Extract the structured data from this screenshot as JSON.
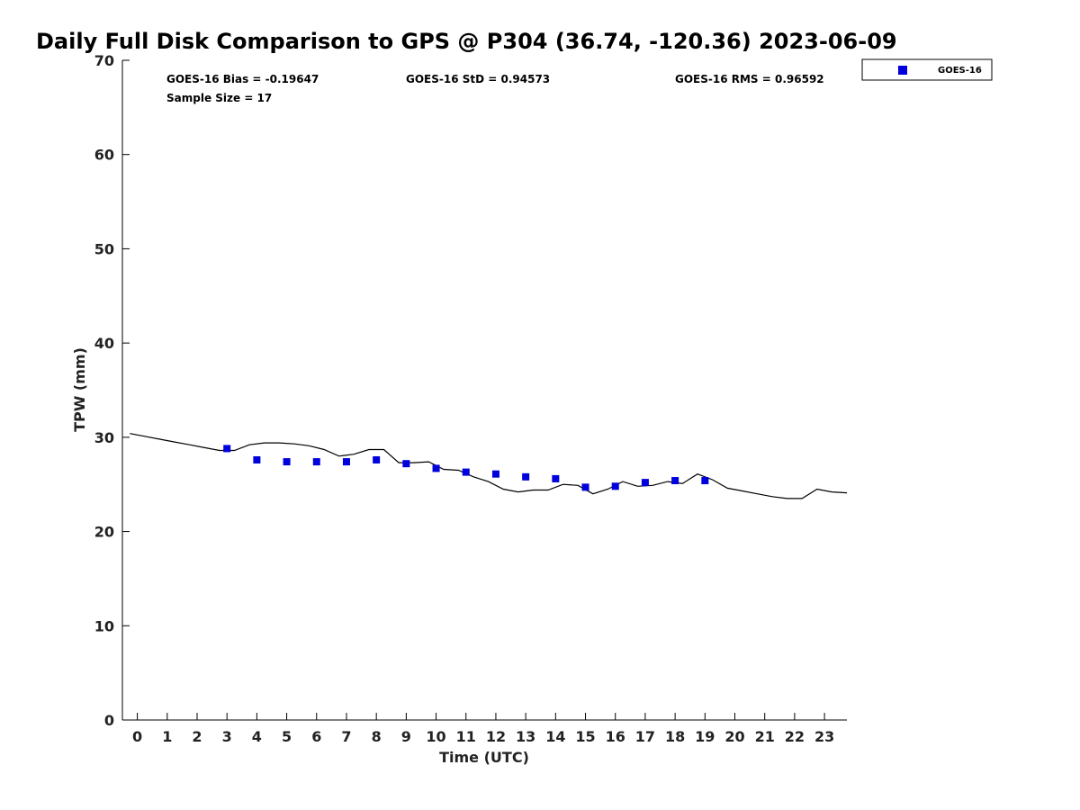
{
  "chart_data": {
    "type": "scatter",
    "title": "Daily Full Disk Comparison to GPS @ P304 (36.74, -120.36) 2023-06-09",
    "xlabel": "Time (UTC)",
    "ylabel": "TPW (mm)",
    "xlim": [
      -0.5,
      23.75
    ],
    "ylim": [
      0,
      70
    ],
    "xticks": [
      0,
      1,
      2,
      3,
      4,
      5,
      6,
      7,
      8,
      9,
      10,
      11,
      12,
      13,
      14,
      15,
      16,
      17,
      18,
      19,
      20,
      21,
      22,
      23
    ],
    "yticks": [
      0,
      10,
      20,
      30,
      40,
      50,
      60,
      70
    ],
    "grid": false,
    "legend_placement": "top-right-outside",
    "stats": {
      "bias": "GOES-16 Bias = -0.19647",
      "std": "GOES-16 StD = 0.94573",
      "rms": "GOES-16 RMS = 0.96592",
      "sample_size": "Sample Size = 17"
    },
    "series": [
      {
        "name": "GOES-16",
        "kind": "scatter",
        "marker": "square",
        "color": "#0000dd",
        "x": [
          3,
          4,
          5,
          6,
          7,
          8,
          9,
          10,
          11,
          12,
          13,
          14,
          15,
          16,
          17,
          18,
          19
        ],
        "y": [
          28.8,
          27.6,
          27.4,
          27.4,
          27.4,
          27.6,
          27.2,
          26.7,
          26.3,
          26.1,
          25.8,
          25.6,
          24.7,
          24.8,
          25.2,
          25.4,
          25.4
        ]
      },
      {
        "kind": "line",
        "color": "#000000",
        "x": [
          -0.25,
          0.25,
          0.75,
          1.25,
          1.75,
          2.25,
          2.75,
          3.25,
          3.75,
          4.25,
          4.75,
          5.25,
          5.75,
          6.25,
          6.75,
          7.25,
          7.75,
          8.25,
          8.75,
          9.25,
          9.75,
          10.25,
          10.75,
          11.25,
          11.75,
          12.25,
          12.75,
          13.25,
          13.75,
          14.25,
          14.75,
          15.25,
          15.75,
          16.25,
          16.75,
          17.25,
          17.75,
          18.25,
          18.75,
          19.25,
          19.75,
          20.25,
          20.75,
          21.25,
          21.75,
          22.25,
          22.75,
          23.25,
          23.75
        ],
        "y": [
          30.4,
          30.1,
          29.8,
          29.5,
          29.2,
          28.9,
          28.6,
          28.6,
          29.2,
          29.4,
          29.4,
          29.3,
          29.1,
          28.7,
          28.0,
          28.2,
          28.7,
          28.7,
          27.3,
          27.3,
          27.4,
          26.6,
          26.5,
          25.8,
          25.3,
          24.5,
          24.2,
          24.4,
          24.4,
          25.0,
          24.9,
          24.0,
          24.5,
          25.3,
          24.8,
          24.9,
          25.3,
          25.1,
          26.1,
          25.5,
          24.6,
          24.3,
          24.0,
          23.7,
          23.5,
          23.5,
          24.5,
          24.2,
          24.1
        ]
      }
    ]
  }
}
